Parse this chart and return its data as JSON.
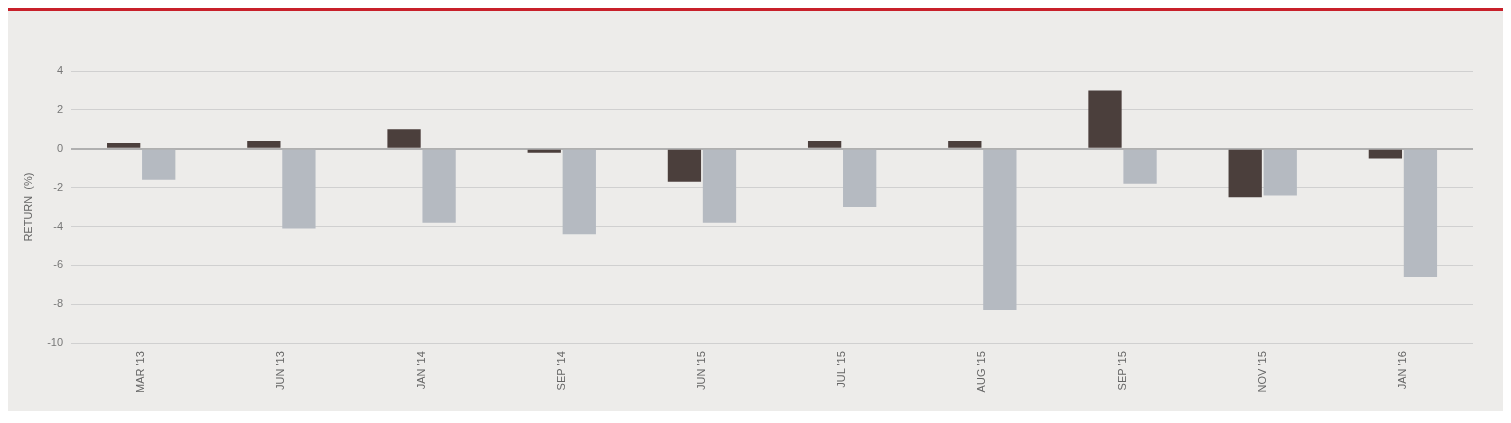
{
  "chart_data": {
    "type": "bar",
    "ylabel": "RETURN  (%)",
    "categories": [
      "MAR '13",
      "JUN '13",
      "JAN '14",
      "SEP '14",
      "JUN '15",
      "JUL '15",
      "AUG '15",
      "SEP '15",
      "NOV '15",
      "JAN '16"
    ],
    "series": [
      {
        "color": "#4b3f3c",
        "values": [
          0.3,
          0.4,
          1.0,
          -0.2,
          -1.7,
          0.4,
          0.4,
          3.0,
          -2.5,
          -0.5
        ]
      },
      {
        "color": "#b5bac1",
        "values": [
          -1.6,
          -4.1,
          -3.8,
          -4.4,
          -3.8,
          -3.0,
          -8.3,
          -1.8,
          -2.4,
          -6.6
        ]
      }
    ],
    "ylim": [
      -10,
      4
    ],
    "yticks": [
      -10,
      -8,
      -6,
      -4,
      -2,
      0,
      2,
      4
    ],
    "grid": "y"
  }
}
